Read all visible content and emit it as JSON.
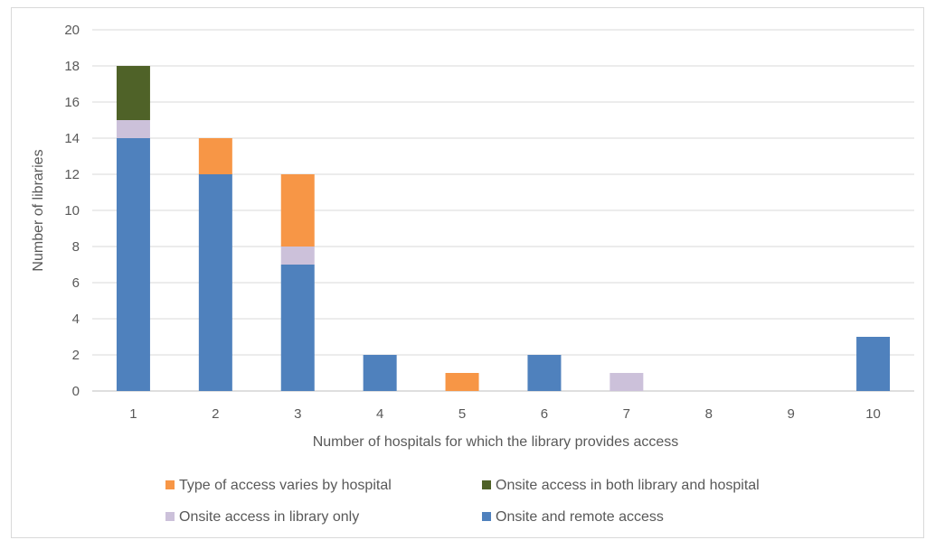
{
  "chart_data": {
    "type": "bar",
    "stacked": true,
    "title": "",
    "xlabel": "Number of hospitals for which the library provides access",
    "ylabel": "Number of libraries",
    "categories": [
      "1",
      "2",
      "3",
      "4",
      "5",
      "6",
      "7",
      "8",
      "9",
      "10"
    ],
    "ylim": [
      0,
      20
    ],
    "yticks": [
      "0",
      "2",
      "4",
      "6",
      "8",
      "10",
      "12",
      "14",
      "16",
      "18",
      "20"
    ],
    "grid": true,
    "legend_position": "bottom",
    "series": [
      {
        "name": "Onsite and remote access",
        "color": "#4f81bd",
        "values": [
          14,
          12,
          7,
          2,
          0,
          2,
          0,
          0,
          0,
          3
        ]
      },
      {
        "name": "Onsite access in library only",
        "color": "#ccc1da",
        "values": [
          1,
          0,
          1,
          0,
          0,
          0,
          1,
          0,
          0,
          0
        ]
      },
      {
        "name": "Type of access varies by hospital",
        "color": "#f79646",
        "values": [
          0,
          2,
          4,
          0,
          1,
          0,
          0,
          0,
          0,
          0
        ]
      },
      {
        "name": "Onsite access in both library and hospital",
        "color": "#4f6228",
        "values": [
          3,
          0,
          0,
          0,
          0,
          0,
          0,
          0,
          0,
          0
        ]
      }
    ],
    "legend_order": [
      2,
      3,
      1,
      0
    ]
  }
}
